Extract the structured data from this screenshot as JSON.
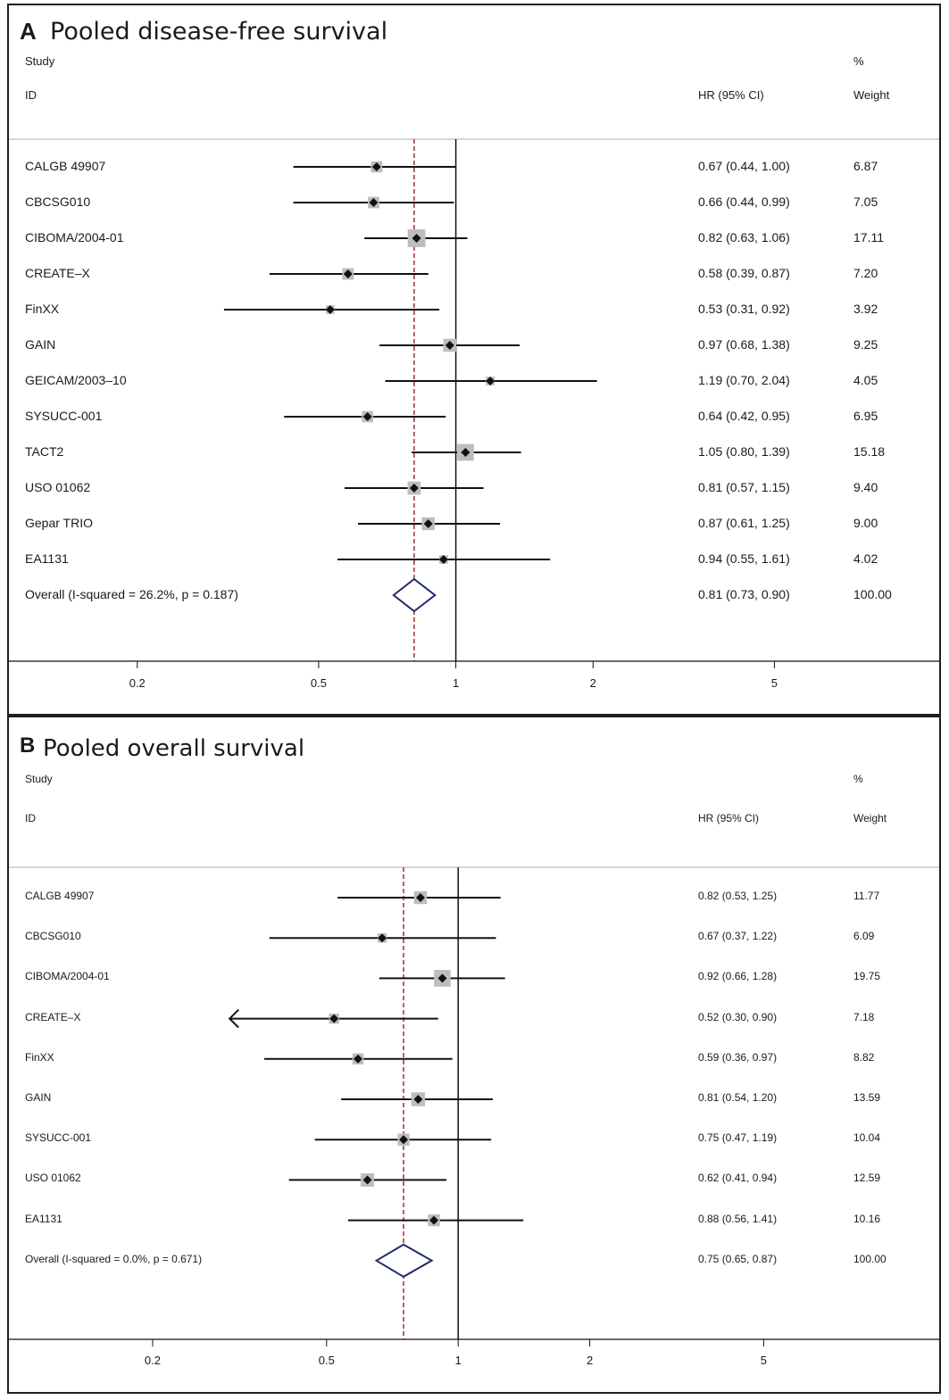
{
  "chart_data": [
    {
      "type": "forest",
      "panel_letter": "A",
      "title": "Pooled disease-free survival",
      "header": {
        "study": "Study",
        "id": "ID",
        "hr": "HR (95% CI)",
        "pct": "%",
        "weight": "Weight"
      },
      "x_scale": "log",
      "xticks": [
        "0.2",
        "0.5",
        "1",
        "2",
        "5"
      ],
      "overall_reference_line": 0.81,
      "null_line": 1,
      "studies": [
        {
          "name": "CALGB 49907",
          "hr": 0.67,
          "lo": 0.44,
          "hi": 1.0,
          "ci_text": "0.67 (0.44, 1.00)",
          "weight": "6.87"
        },
        {
          "name": "CBCSG010",
          "hr": 0.66,
          "lo": 0.44,
          "hi": 0.99,
          "ci_text": "0.66 (0.44, 0.99)",
          "weight": "7.05"
        },
        {
          "name": "CIBOMA/2004-01",
          "hr": 0.82,
          "lo": 0.63,
          "hi": 1.06,
          "ci_text": "0.82 (0.63, 1.06)",
          "weight": "17.11"
        },
        {
          "name": "CREATE–X",
          "hr": 0.58,
          "lo": 0.39,
          "hi": 0.87,
          "ci_text": "0.58 (0.39, 0.87)",
          "weight": "7.20"
        },
        {
          "name": "FinXX",
          "hr": 0.53,
          "lo": 0.31,
          "hi": 0.92,
          "ci_text": "0.53 (0.31, 0.92)",
          "weight": "3.92"
        },
        {
          "name": "GAIN",
          "hr": 0.97,
          "lo": 0.68,
          "hi": 1.38,
          "ci_text": "0.97 (0.68, 1.38)",
          "weight": "9.25"
        },
        {
          "name": "GEICAM/2003–10",
          "hr": 1.19,
          "lo": 0.7,
          "hi": 2.04,
          "ci_text": "1.19 (0.70, 2.04)",
          "weight": "4.05"
        },
        {
          "name": "SYSUCC-001",
          "hr": 0.64,
          "lo": 0.42,
          "hi": 0.95,
          "ci_text": "0.64 (0.42, 0.95)",
          "weight": "6.95"
        },
        {
          "name": "TACT2",
          "hr": 1.05,
          "lo": 0.8,
          "hi": 1.39,
          "ci_text": "1.05 (0.80, 1.39)",
          "weight": "15.18"
        },
        {
          "name": "USO 01062",
          "hr": 0.81,
          "lo": 0.57,
          "hi": 1.15,
          "ci_text": "0.81 (0.57, 1.15)",
          "weight": "9.40"
        },
        {
          "name": "Gepar TRIO",
          "hr": 0.87,
          "lo": 0.61,
          "hi": 1.25,
          "ci_text": "0.87 (0.61, 1.25)",
          "weight": "9.00"
        },
        {
          "name": "EA1131",
          "hr": 0.94,
          "lo": 0.55,
          "hi": 1.61,
          "ci_text": "0.94 (0.55, 1.61)",
          "weight": "4.02"
        }
      ],
      "overall": {
        "name": "Overall  (I-squared = 26.2%, p = 0.187)",
        "hr": 0.81,
        "lo": 0.73,
        "hi": 0.9,
        "ci_text": "0.81 (0.73, 0.90)",
        "weight": "100.00"
      }
    },
    {
      "type": "forest",
      "panel_letter": "B",
      "title": "Pooled overall survival",
      "header": {
        "study": "Study",
        "id": "ID",
        "hr": "HR (95% CI)",
        "pct": "%",
        "weight": "Weight"
      },
      "x_scale": "log",
      "xticks": [
        "0.2",
        "0.5",
        "1",
        "2",
        "5"
      ],
      "overall_reference_line": 0.75,
      "null_line": 1,
      "studies": [
        {
          "name": "CALGB 49907",
          "hr": 0.82,
          "lo": 0.53,
          "hi": 1.25,
          "ci_text": "0.82 (0.53, 1.25)",
          "weight": "11.77"
        },
        {
          "name": "CBCSG010",
          "hr": 0.67,
          "lo": 0.37,
          "hi": 1.22,
          "ci_text": "0.67 (0.37, 1.22)",
          "weight": "6.09"
        },
        {
          "name": "CIBOMA/2004-01",
          "hr": 0.92,
          "lo": 0.66,
          "hi": 1.28,
          "ci_text": "0.92 (0.66, 1.28)",
          "weight": "19.75"
        },
        {
          "name": "CREATE–X",
          "hr": 0.52,
          "lo": 0.3,
          "hi": 0.9,
          "ci_text": "0.52 (0.30, 0.90)",
          "weight": "7.18",
          "clipped_left": true
        },
        {
          "name": "FinXX",
          "hr": 0.59,
          "lo": 0.36,
          "hi": 0.97,
          "ci_text": "0.59 (0.36, 0.97)",
          "weight": "8.82"
        },
        {
          "name": "GAIN",
          "hr": 0.81,
          "lo": 0.54,
          "hi": 1.2,
          "ci_text": "0.81 (0.54, 1.20)",
          "weight": "13.59"
        },
        {
          "name": "SYSUCC-001",
          "hr": 0.75,
          "lo": 0.47,
          "hi": 1.19,
          "ci_text": "0.75 (0.47, 1.19)",
          "weight": "10.04"
        },
        {
          "name": "USO 01062",
          "hr": 0.62,
          "lo": 0.41,
          "hi": 0.94,
          "ci_text": "0.62 (0.41, 0.94)",
          "weight": "12.59"
        },
        {
          "name": "EA1131",
          "hr": 0.88,
          "lo": 0.56,
          "hi": 1.41,
          "ci_text": "0.88 (0.56, 1.41)",
          "weight": "10.16"
        }
      ],
      "overall": {
        "name": "Overall  (I-squared = 0.0%, p = 0.671)",
        "hr": 0.75,
        "lo": 0.65,
        "hi": 0.87,
        "ci_text": "0.75 (0.65, 0.87)",
        "weight": "100.00"
      }
    }
  ]
}
